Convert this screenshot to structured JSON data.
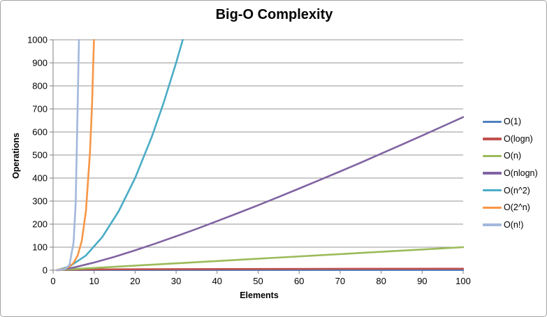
{
  "window": {
    "background": "#FFFFFF",
    "border_color": "#A3A3A3"
  },
  "chart_data": {
    "type": "line",
    "title": "Big-O Complexity",
    "xlabel": "Elements",
    "ylabel": "Operations",
    "xlim": [
      0,
      100
    ],
    "ylim": [
      0,
      1000
    ],
    "xtick_interval": 10,
    "ytick_interval": 100,
    "grid": "horizontal",
    "legend_position": "right",
    "axis_color": "#7F7F7F",
    "gridline_color": "#969696",
    "tick_label_color": "#000000",
    "series": [
      {
        "name": "O(1)",
        "color": "#4F81BD",
        "points": [
          [
            1,
            1
          ],
          [
            100,
            1
          ]
        ]
      },
      {
        "name": "O(logn)",
        "color": "#C0504D",
        "points": [
          [
            1,
            0
          ],
          [
            2,
            1
          ],
          [
            4,
            2
          ],
          [
            8,
            3
          ],
          [
            16,
            4
          ],
          [
            32,
            5
          ],
          [
            64,
            6
          ],
          [
            100,
            6.64
          ]
        ]
      },
      {
        "name": "O(n)",
        "color": "#9BBB59",
        "points": [
          [
            1,
            1
          ],
          [
            100,
            100
          ]
        ]
      },
      {
        "name": "O(nlogn)",
        "color": "#8064A2",
        "points": [
          [
            1,
            0
          ],
          [
            5,
            11.6
          ],
          [
            10,
            33.2
          ],
          [
            15,
            58.6
          ],
          [
            20,
            86.4
          ],
          [
            25,
            116.1
          ],
          [
            30,
            147.2
          ],
          [
            35,
            179.5
          ],
          [
            40,
            212.9
          ],
          [
            45,
            247.2
          ],
          [
            50,
            282.2
          ],
          [
            55,
            317.9
          ],
          [
            60,
            354.4
          ],
          [
            65,
            391.4
          ],
          [
            70,
            428.8
          ],
          [
            75,
            466.8
          ],
          [
            80,
            505.8
          ],
          [
            85,
            544.9
          ],
          [
            90,
            584.3
          ],
          [
            95,
            624.2
          ],
          [
            100,
            664.4
          ]
        ]
      },
      {
        "name": "O(n^2)",
        "color": "#4BACC6",
        "points": [
          [
            1,
            1
          ],
          [
            4,
            16
          ],
          [
            8,
            64
          ],
          [
            12,
            144
          ],
          [
            16,
            256
          ],
          [
            20,
            400
          ],
          [
            24,
            576
          ],
          [
            27,
            729
          ],
          [
            30,
            900
          ],
          [
            31.62,
            1000
          ]
        ]
      },
      {
        "name": "O(2^n)",
        "color": "#F79646",
        "points": [
          [
            1,
            2
          ],
          [
            2,
            4
          ],
          [
            3,
            8
          ],
          [
            4,
            16
          ],
          [
            5,
            32
          ],
          [
            6,
            64
          ],
          [
            7,
            128
          ],
          [
            8,
            256
          ],
          [
            9,
            512
          ],
          [
            9.5,
            724
          ],
          [
            9.97,
            1000
          ]
        ]
      },
      {
        "name": "O(n!)",
        "color": "#A3B8DB",
        "points": [
          [
            1,
            1
          ],
          [
            2,
            2
          ],
          [
            3,
            6
          ],
          [
            4,
            24
          ],
          [
            5,
            120
          ],
          [
            5.5,
            288
          ],
          [
            6,
            720
          ],
          [
            6.3,
            1000
          ]
        ]
      }
    ]
  }
}
